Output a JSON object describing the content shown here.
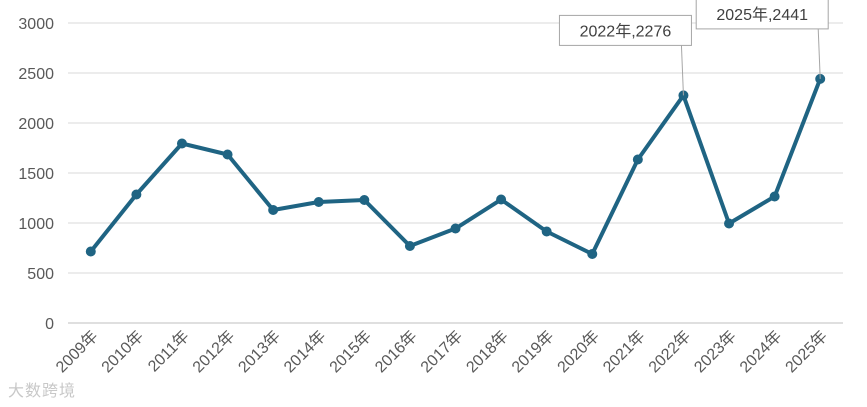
{
  "chart_data": {
    "type": "line",
    "title": "",
    "xlabel": "",
    "ylabel": "",
    "categories": [
      "2009年",
      "2010年",
      "2011年",
      "2012年",
      "2013年",
      "2014年",
      "2015年",
      "2016年",
      "2017年",
      "2018年",
      "2019年",
      "2020年",
      "2021年",
      "2022年",
      "2023年",
      "2024年",
      "2025年"
    ],
    "series": [
      {
        "values": [
          715,
          1285,
          1795,
          1685,
          1130,
          1210,
          1230,
          770,
          945,
          1235,
          915,
          690,
          1635,
          2276,
          995,
          1265,
          2441
        ]
      }
    ],
    "ylim": [
      0,
      3000
    ],
    "yticks": [
      0,
      500,
      1000,
      1500,
      2000,
      2500,
      3000
    ],
    "grid": true,
    "legend": "none",
    "line_color": "#1f6483",
    "annotations": [
      {
        "label": "2022年,2276",
        "category": "2022年",
        "value": 2276
      },
      {
        "label": "2025年,2441",
        "category": "2025年",
        "value": 2441
      }
    ]
  },
  "watermark": "大数跨境"
}
